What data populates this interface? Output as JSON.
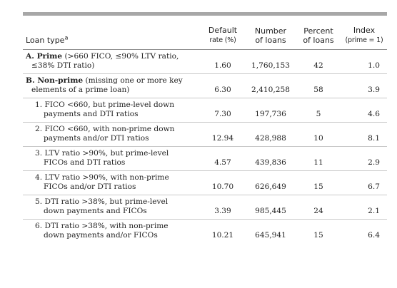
{
  "headers": {
    "loan_type": "Loan type",
    "loan_type_sup": "a",
    "default_rate_1": "Default",
    "default_rate_2": "rate (%)",
    "number_1": "Number",
    "number_2": "of loans",
    "percent_1": "Percent",
    "percent_2": "of loans",
    "index_1": "Index",
    "index_2": "(prime = 1)"
  },
  "rows": [
    {
      "label_bold": "A. Prime",
      "label_rest": " (>660 FICO, ≤90% LTV ratio,",
      "label_line2": "≤38% DTI ratio)",
      "default_rate": "1.60",
      "number": "1,760,153",
      "percent": "42",
      "index": "1.0"
    },
    {
      "label_bold": "B. Non-prime",
      "label_rest": " (missing one or more key",
      "label_line2": "elements of a prime loan)",
      "default_rate": "6.30",
      "number": "2,410,258",
      "percent": "58",
      "index": "3.9"
    },
    {
      "label_line1": "1. FICO <660, but prime-level down",
      "label_line2": "payments and DTI ratios",
      "default_rate": "7.30",
      "number": "197,736",
      "percent": "5",
      "index": "4.6"
    },
    {
      "label_line1": "2. FICO <660, with non-prime down",
      "label_line2": "payments and/or DTI ratios",
      "default_rate": "12.94",
      "number": "428,988",
      "percent": "10",
      "index": "8.1"
    },
    {
      "label_line1": "3. LTV ratio >90%, but prime-level",
      "label_line2": "FICOs and DTI ratios",
      "default_rate": "4.57",
      "number": "439,836",
      "percent": "11",
      "index": "2.9"
    },
    {
      "label_line1": "4. LTV ratio >90%, with non-prime",
      "label_line2": "FICOs and/or DTI ratios",
      "default_rate": "10.70",
      "number": "626,649",
      "percent": "15",
      "index": "6.7"
    },
    {
      "label_line1": "5. DTI ratio >38%, but prime-level",
      "label_line2": "down payments and FICOs",
      "default_rate": "3.39",
      "number": "985,445",
      "percent": "24",
      "index": "2.1"
    },
    {
      "label_line1": "6. DTI ratio >38%, with non-prime",
      "label_line2": "down payments and/or FICOs",
      "default_rate": "10.21",
      "number": "645,941",
      "percent": "15",
      "index": "6.4"
    }
  ]
}
